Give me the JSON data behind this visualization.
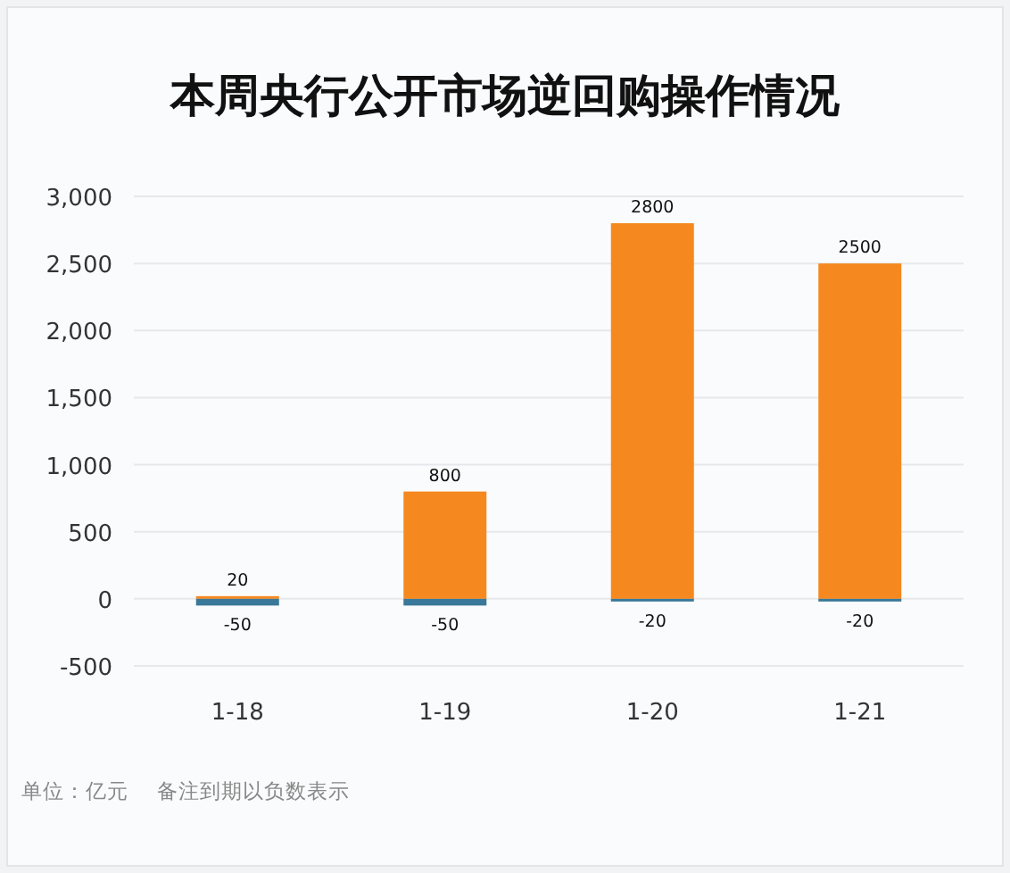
{
  "chart_data": {
    "type": "bar",
    "title": "本周央行公开市场逆回购操作情况",
    "categories": [
      "1-18",
      "1-19",
      "1-20",
      "1-21"
    ],
    "series": [
      {
        "color": "#f5891f",
        "values": [
          20,
          800,
          2800,
          2500
        ]
      },
      {
        "color": "#3a7899",
        "values": [
          -50,
          -50,
          -20,
          -20
        ]
      }
    ],
    "stacked": true,
    "data_labels": true,
    "grid": "y",
    "ylim": [
      -500,
      3000
    ],
    "yticks": [
      {
        "value": -500,
        "label": "-500"
      },
      0,
      500,
      {
        "value": 1000,
        "label": "1,000"
      },
      {
        "value": 1500,
        "label": "1,500"
      },
      {
        "value": 2000,
        "label": "2,000"
      },
      {
        "value": 2500,
        "label": "2,500"
      },
      {
        "value": 3000,
        "label": "3,000"
      }
    ],
    "annotations": [
      "单位：亿元",
      "备注到期以负数表示"
    ]
  }
}
